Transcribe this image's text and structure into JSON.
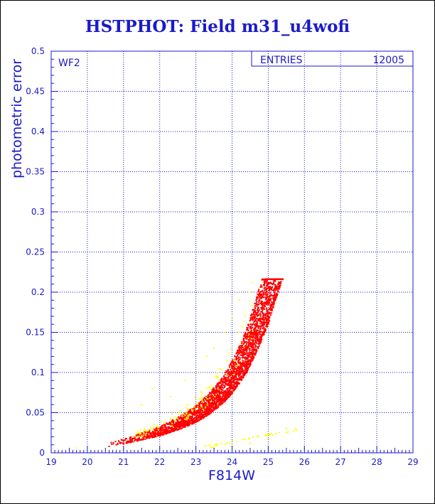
{
  "title": "HSTPHOT: Field m31_u4wofi",
  "chart_data": {
    "type": "scatter",
    "xlabel": "F814W",
    "ylabel": "photometric error",
    "xlim": [
      19,
      29
    ],
    "ylim": [
      0,
      0.5
    ],
    "x_ticks": [
      "19",
      "20",
      "21",
      "22",
      "23",
      "24",
      "25",
      "26",
      "27",
      "28",
      "29"
    ],
    "y_ticks": [
      "0",
      "0.05",
      "0.1",
      "0.15",
      "0.2",
      "0.25",
      "0.3",
      "0.35",
      "0.4",
      "0.45",
      "0.5"
    ],
    "grid": true,
    "panel_label": "WF2",
    "stats_box": {
      "label": "ENTRIES",
      "value": "12005"
    },
    "colors": {
      "main": "#ff0000",
      "secondary": "#ffff00",
      "axis": "#1a1acc",
      "grid": "#1a1acc"
    },
    "series": [
      {
        "color": "#ff0000",
        "x": [
          20.6,
          20.8,
          21.0,
          21.2,
          21.4,
          21.6,
          21.8,
          22.0,
          22.2,
          22.4,
          22.6,
          22.8,
          23.0,
          23.2,
          23.4,
          23.6,
          23.8,
          24.0,
          24.2,
          24.4,
          24.6,
          24.8,
          25.0,
          25.2,
          25.4
        ],
        "y": [
          0.008,
          0.01,
          0.011,
          0.013,
          0.015,
          0.017,
          0.019,
          0.021,
          0.024,
          0.027,
          0.03,
          0.034,
          0.038,
          0.043,
          0.049,
          0.056,
          0.064,
          0.074,
          0.086,
          0.1,
          0.118,
          0.138,
          0.16,
          0.19,
          0.216
        ]
      },
      {
        "color": "#ffff00",
        "x": [
          19.7,
          21.5,
          21.8,
          22.3,
          22.7,
          23.0,
          23.3,
          23.5,
          23.8,
          24.0,
          24.2,
          24.5,
          23.5,
          24.0,
          24.5,
          25.0,
          25.5
        ],
        "y": [
          0.006,
          0.06,
          0.08,
          0.07,
          0.09,
          0.1,
          0.12,
          0.13,
          0.15,
          0.17,
          0.19,
          0.2,
          0.006,
          0.008,
          0.012,
          0.018,
          0.03
        ]
      }
    ]
  }
}
